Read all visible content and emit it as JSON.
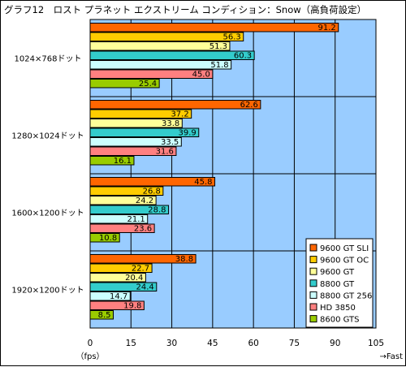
{
  "chart_data": {
    "type": "bar",
    "orientation": "horizontal",
    "title": "グラフ12　ロスト プラネット エクストリーム コンディション：Snow（高負荷設定）",
    "categories": [
      "1024×768ドット",
      "1280×1024ドット",
      "1600×1200ドット",
      "1920×1200ドット"
    ],
    "series": [
      {
        "name": "9600 GT SLI",
        "color": "#ff6600",
        "values": [
          91.2,
          62.6,
          45.8,
          38.8
        ]
      },
      {
        "name": "9600 GT OC",
        "color": "#ffcc00",
        "values": [
          56.3,
          37.2,
          26.8,
          22.7
        ]
      },
      {
        "name": "9600 GT",
        "color": "#ffff99",
        "values": [
          51.3,
          33.8,
          24.2,
          20.4
        ]
      },
      {
        "name": "8800 GT",
        "color": "#33cccc",
        "values": [
          60.3,
          39.9,
          28.8,
          24.4
        ]
      },
      {
        "name": "8800 GT 256",
        "color": "#ccffff",
        "values": [
          51.8,
          33.5,
          21.1,
          14.7
        ]
      },
      {
        "name": "HD 3850",
        "color": "#ff8080",
        "values": [
          45.0,
          31.6,
          23.6,
          19.8
        ]
      },
      {
        "name": "8600 GTS",
        "color": "#99cc00",
        "values": [
          25.4,
          16.1,
          10.8,
          8.5
        ]
      }
    ],
    "xlim": [
      0,
      105
    ],
    "xticks": [
      0,
      15,
      30,
      45,
      60,
      75,
      90,
      105
    ],
    "xlabel": "（fps）",
    "xlabel_right": "→Fast",
    "legend_position": "bottom-right",
    "grid": true,
    "plot_background": "#99ccff"
  }
}
